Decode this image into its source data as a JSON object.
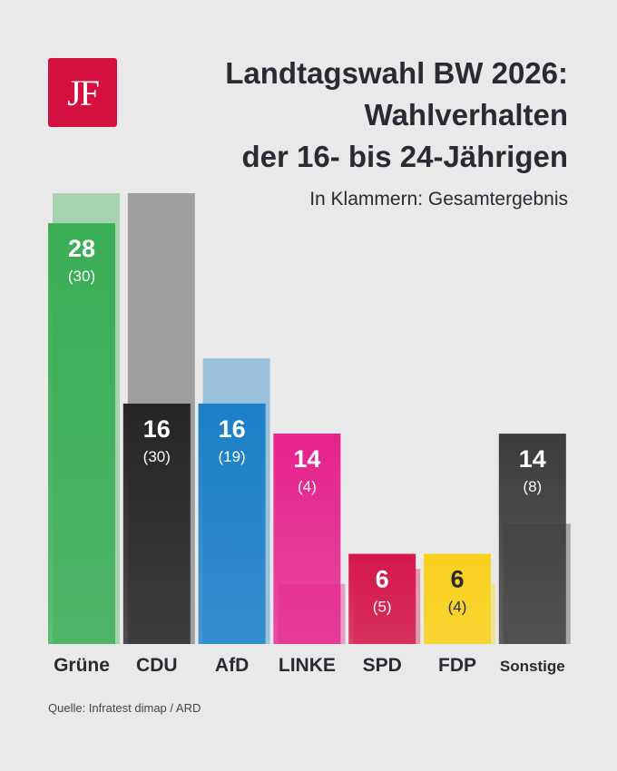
{
  "logo": "JF",
  "title_lines": [
    "Landtagswahl BW 2026:",
    "Wahlverhalten",
    "der 16- bis 24-Jährigen"
  ],
  "subtitle": "In Klammern: Gesamtergebnis",
  "source": "Quelle: Infratest dimap / ARD",
  "chart_data": {
    "type": "bar",
    "title": "Landtagswahl BW 2026: Wahlverhalten der 16- bis 24-Jährigen",
    "categories": [
      "Grüne",
      "CDU",
      "AfD",
      "LINKE",
      "SPD",
      "FDP",
      "Sonstige"
    ],
    "series": [
      {
        "name": "16- bis 24-Jährige",
        "values": [
          28,
          16,
          16,
          14,
          6,
          6,
          14
        ]
      },
      {
        "name": "Gesamtergebnis",
        "values": [
          30,
          30,
          19,
          4,
          5,
          4,
          8
        ]
      }
    ],
    "colors": [
      "#3aae55",
      "#262626",
      "#1b80c8",
      "#e6228c",
      "#d4174a",
      "#f9d11a",
      "#3c3c3c"
    ],
    "label_colors": [
      "#ffffff",
      "#ffffff",
      "#ffffff",
      "#ffffff",
      "#ffffff",
      "#2a2a33",
      "#ffffff"
    ],
    "ylim": [
      0,
      30
    ]
  }
}
